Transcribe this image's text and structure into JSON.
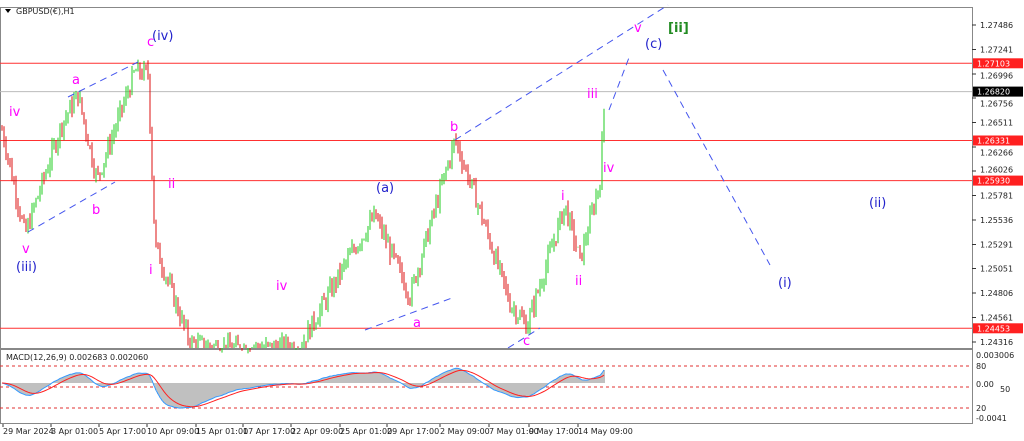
{
  "chart_data": {
    "type": "candlestick",
    "title": "GBPUSD(€),H1",
    "price_axis_ticks": [
      "1.27486",
      "1.27241",
      "1.26996",
      "1.26756",
      "1.26511",
      "1.26266",
      "1.26026",
      "1.25781",
      "1.25536",
      "1.25291",
      "1.25051",
      "1.24806",
      "1.24561",
      "1.24316"
    ],
    "price_range": [
      1.2425,
      1.2765
    ],
    "current_price": "1.26820",
    "horizontal_levels": [
      "1.27103",
      "1.26331",
      "1.25930",
      "1.24453"
    ],
    "level_color": "#ff3030",
    "time_axis_ticks": [
      "29 Mar 2024",
      "3 Apr 01:00",
      "5 Apr 17:00",
      "10 Apr 09:00",
      "15 Apr 01:00",
      "17 Apr 17:00",
      "22 Apr 09:00",
      "25 Apr 01:00",
      "29 Apr 17:00",
      "2 May 09:00",
      "7 May 01:00",
      "9 May 17:00",
      "14 May 09:00"
    ],
    "price_path_approx": [
      [
        "29 Mar 2024",
        1.2644
      ],
      [
        "2 Apr",
        1.2539
      ],
      [
        "3 Apr 01:00",
        1.265
      ],
      [
        "4 Apr",
        1.2679
      ],
      [
        "5 Apr 17:00",
        1.2594
      ],
      [
        "8 Apr",
        1.2702
      ],
      [
        "10 Apr 09:00",
        1.27
      ],
      [
        "10 Apr 18:00",
        1.2529
      ],
      [
        "12 Apr",
        1.243
      ],
      [
        "17 Apr",
        1.2425
      ],
      [
        "22 Apr",
        1.2427
      ],
      [
        "25 Apr",
        1.2518
      ],
      [
        "26 Apr",
        1.2558
      ],
      [
        "30 Apr",
        1.2478
      ],
      [
        "2 May 09:00",
        1.2634
      ],
      [
        "3 May",
        1.2578
      ],
      [
        "7 May",
        1.247
      ],
      [
        "8 May",
        1.2448
      ],
      [
        "9 May 17:00",
        1.2568
      ],
      [
        "13 May",
        1.2513
      ],
      [
        "14 May 09:00",
        1.2593
      ],
      [
        "15 May",
        1.2682
      ]
    ],
    "bull_color": "#22cc22",
    "bear_color": "#dd1111",
    "indicator": {
      "label": "MACD(12,26,9) 0.002683 0.002060",
      "axis_ticks": [
        "0.003006",
        "80",
        "0.00",
        "50",
        "20",
        "-0.0041"
      ],
      "macd_color": "#3399ff",
      "signal_color": "#ff2020",
      "histogram_color": "#c0c0c0"
    },
    "wave_labels": [
      {
        "text": "c",
        "color": "#ff00ff"
      },
      {
        "text": "(iv)",
        "color": "#2222cc"
      },
      {
        "text": "a",
        "color": "#ff00ff"
      },
      {
        "text": "iv",
        "color": "#ff00ff"
      },
      {
        "text": "b",
        "color": "#ff00ff"
      },
      {
        "text": "v",
        "color": "#ff00ff"
      },
      {
        "text": "(iii)",
        "color": "#2222cc"
      },
      {
        "text": "ii",
        "color": "#ff00ff"
      },
      {
        "text": "i",
        "color": "#ff00ff"
      },
      {
        "text": "iv",
        "color": "#ff00ff"
      },
      {
        "text": "(a)",
        "color": "#2222cc"
      },
      {
        "text": "a",
        "color": "#ff00ff"
      },
      {
        "text": "b",
        "color": "#ff00ff"
      },
      {
        "text": "c",
        "color": "#ff00ff"
      },
      {
        "text": "i",
        "color": "#ff00ff"
      },
      {
        "text": "ii",
        "color": "#ff00ff"
      },
      {
        "text": "iii",
        "color": "#ff00ff"
      },
      {
        "text": "iv",
        "color": "#ff00ff"
      },
      {
        "text": "v",
        "color": "#ff00ff"
      },
      {
        "text": "(c)",
        "color": "#2222cc"
      },
      {
        "text": "[ii]",
        "color": "#228b22"
      },
      {
        "text": "(ii)",
        "color": "#2222cc"
      },
      {
        "text": "(i)",
        "color": "#2222cc"
      }
    ]
  }
}
